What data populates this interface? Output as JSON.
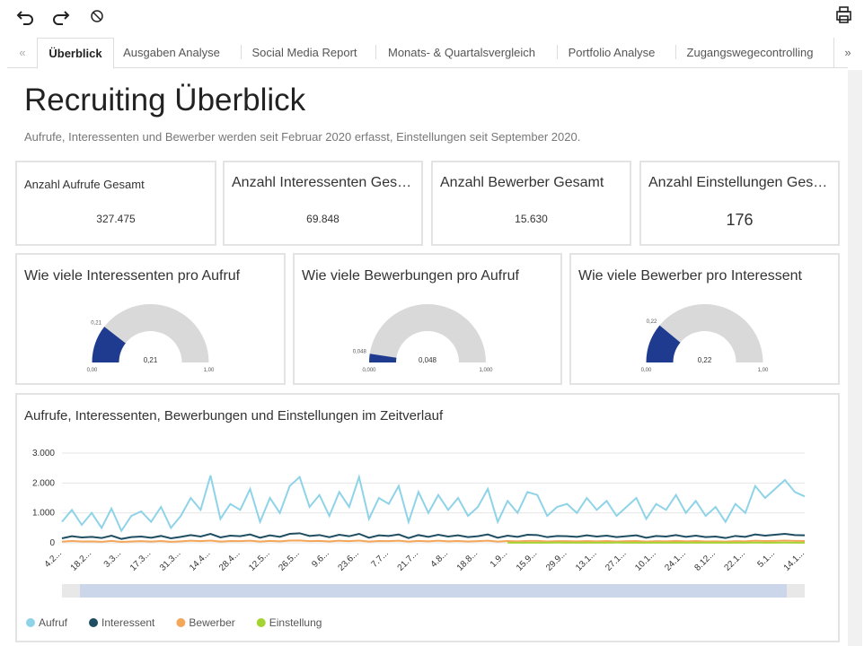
{
  "tabs": [
    "Überblick",
    "Ausgaben Analyse",
    "Social Media Report",
    "Monats- & Quartalsvergleich",
    "Portfolio Analyse",
    "Zugangswegecontrolling"
  ],
  "header": {
    "title": "Recruiting Überblick",
    "subtitle": "Aufrufe, Interessenten und Bewerber werden seit Februar 2020 erfasst, Einstellungen seit September 2020."
  },
  "kpis": [
    {
      "title": "Anzahl Aufrufe Gesamt",
      "value": "327.475"
    },
    {
      "title": "Anzahl Interessenten Ges…",
      "value": "69.848"
    },
    {
      "title": "Anzahl Bewerber Gesamt",
      "value": "15.630"
    },
    {
      "title": "Anzahl Einstellungen Ges…",
      "value": "176"
    }
  ],
  "gauges": [
    {
      "type": "gauge",
      "title": "Wie viele Interessenten pro Aufruf",
      "value": 0.21,
      "value_labels": [
        "0,21"
      ],
      "color": "#1f3b8f",
      "range": [
        {
          "value": 0,
          "label": "0,00"
        },
        {
          "value": 1,
          "label": "1,00"
        }
      ]
    },
    {
      "type": "gauge",
      "title": "Wie viele Bewerbungen pro Aufruf",
      "value": 0.048,
      "value_labels": [
        "0,048"
      ],
      "color": "#1f3b8f",
      "range": [
        {
          "value": 0,
          "label": "0,000"
        },
        {
          "value": 1,
          "label": "1,000"
        }
      ]
    },
    {
      "type": "gauge",
      "title": "Wie viele Bewerber pro Interessent",
      "value": 0.22,
      "value_labels": [
        "0,22"
      ],
      "color": "#1f3b8f",
      "range": [
        {
          "value": 0,
          "label": "0,00"
        },
        {
          "value": 1,
          "label": "1,00"
        }
      ]
    }
  ],
  "chart_data": {
    "type": "line",
    "title": "Aufrufe, Interessenten, Bewerbungen und Einstellungen im Zeitverlauf",
    "categories": [
      "4.2...",
      null,
      null,
      "18.2...",
      null,
      null,
      "3.3...",
      null,
      null,
      "17.3...",
      null,
      null,
      "31.3...",
      null,
      null,
      "14.4...",
      null,
      null,
      "28.4...",
      null,
      null,
      "12.5...",
      null,
      null,
      "26.5...",
      null,
      null,
      "9.6...",
      null,
      null,
      "23.6...",
      null,
      null,
      "7.7...",
      null,
      null,
      "21.7...",
      null,
      null,
      "4.8...",
      null,
      null,
      "18.8...",
      null,
      null,
      "1.9...",
      null,
      null,
      "15.9...",
      null,
      null,
      "29.9...",
      null,
      null,
      "13.1...",
      null,
      null,
      "27.1...",
      null,
      null,
      "10.1...",
      null,
      null,
      "24.1...",
      null,
      null,
      "8.12...",
      null,
      null,
      "22.1...",
      null,
      null,
      "5.1...",
      null,
      null,
      "14.1..."
    ],
    "ylim": [
      0,
      3000
    ],
    "yticks": [
      0,
      {
        "value": 1000,
        "label": "1.000"
      },
      {
        "value": 2000,
        "label": "2.000"
      },
      {
        "value": 3000,
        "label": "3.000"
      }
    ],
    "grid": true,
    "series": [
      {
        "name": "Aufruf",
        "color": "#8fd3e8",
        "values": [
          700,
          1100,
          600,
          1000,
          500,
          1150,
          400,
          900,
          1050,
          700,
          1200,
          500,
          900,
          1500,
          1100,
          2250,
          800,
          1300,
          1100,
          1800,
          700,
          1500,
          1000,
          1900,
          2200,
          1200,
          1600,
          900,
          1700,
          1200,
          2200,
          800,
          1500,
          1300,
          1900,
          700,
          1700,
          1000,
          1600,
          1100,
          1500,
          900,
          1200,
          1800,
          700,
          1400,
          1000,
          1700,
          1600,
          900,
          1200,
          1300,
          1000,
          1500,
          1100,
          1400,
          900,
          1200,
          1500,
          800,
          1300,
          1100,
          1600,
          1000,
          1400,
          900,
          1200,
          700,
          1300,
          1000,
          1900,
          1500,
          1800,
          2100,
          1700,
          1550
        ]
      },
      {
        "name": "Interessent",
        "color": "#1f4e63",
        "values": [
          150,
          220,
          180,
          200,
          160,
          240,
          130,
          190,
          210,
          170,
          230,
          150,
          200,
          260,
          210,
          300,
          180,
          240,
          220,
          280,
          170,
          250,
          200,
          300,
          320,
          230,
          260,
          190,
          270,
          220,
          300,
          170,
          250,
          230,
          280,
          160,
          260,
          200,
          270,
          210,
          250,
          190,
          220,
          280,
          170,
          240,
          200,
          270,
          260,
          190,
          230,
          220,
          200,
          250,
          210,
          240,
          190,
          220,
          250,
          170,
          230,
          210,
          260,
          200,
          240,
          190,
          210,
          160,
          230,
          200,
          280,
          240,
          270,
          300,
          260,
          250
        ]
      },
      {
        "name": "Bewerber",
        "color": "#f4a65a",
        "values": [
          40,
          60,
          45,
          50,
          35,
          65,
          30,
          45,
          55,
          40,
          60,
          35,
          50,
          70,
          55,
          75,
          40,
          60,
          55,
          70,
          40,
          65,
          50,
          75,
          80,
          55,
          65,
          45,
          70,
          55,
          75,
          40,
          60,
          55,
          70,
          40,
          65,
          50,
          70,
          50,
          60,
          45,
          55,
          70,
          40,
          60,
          50,
          65,
          65,
          45,
          55,
          55,
          50,
          60,
          50,
          60,
          45,
          55,
          60,
          40,
          55,
          50,
          65,
          50,
          60,
          45,
          50,
          40,
          55,
          50,
          70,
          60,
          65,
          75,
          65,
          60
        ]
      },
      {
        "name": "Einstellung",
        "color": "#a3d433",
        "values": [
          null,
          null,
          null,
          null,
          null,
          null,
          null,
          null,
          null,
          null,
          null,
          null,
          null,
          null,
          null,
          null,
          null,
          null,
          null,
          null,
          null,
          null,
          null,
          null,
          null,
          null,
          null,
          null,
          null,
          null,
          null,
          null,
          null,
          null,
          null,
          null,
          null,
          null,
          null,
          null,
          null,
          null,
          null,
          null,
          null,
          2,
          5,
          3,
          4,
          2,
          6,
          3,
          5,
          2,
          4,
          3,
          6,
          2,
          4,
          3,
          5,
          2,
          3,
          4,
          2,
          5,
          3,
          2,
          4,
          3,
          6,
          4,
          5,
          7,
          4,
          5
        ]
      }
    ]
  }
}
